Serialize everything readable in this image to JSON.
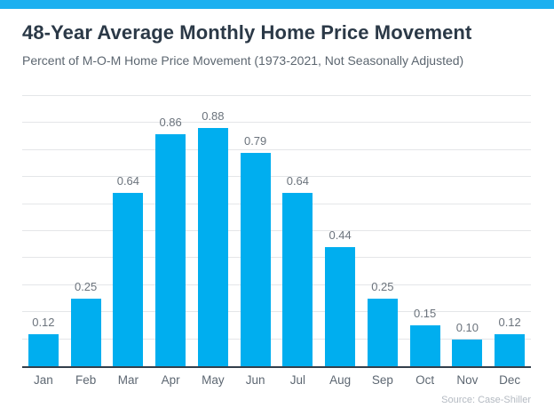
{
  "header": {
    "title": "48-Year Average Monthly Home Price Movement",
    "subtitle": "Percent of M-O-M Home Price Movement (1973-2021, Not Seasonally Adjusted)"
  },
  "footer": {
    "source": "Source: Case-Shiller"
  },
  "colors": {
    "top_bar": "#1CB0F0",
    "bar": "#00AEEF",
    "title_text": "#2b3947",
    "subtitle_text": "#5c6670",
    "gridline": "#e4e6e8",
    "axis": "#343f4b",
    "value_label": "#6b737c",
    "month_label": "#5d6772",
    "source_text": "#b4bac2"
  },
  "chart_data": {
    "type": "bar",
    "title": "48-Year Average Monthly Home Price Movement",
    "subtitle": "Percent of M-O-M Home Price Movement (1973-2021, Not Seasonally Adjusted)",
    "categories": [
      "Jan",
      "Feb",
      "Mar",
      "Apr",
      "May",
      "Jun",
      "Jul",
      "Aug",
      "Sep",
      "Oct",
      "Nov",
      "Dec"
    ],
    "values": [
      0.12,
      0.25,
      0.64,
      0.86,
      0.88,
      0.79,
      0.64,
      0.44,
      0.25,
      0.15,
      0.1,
      0.12
    ],
    "value_labels": [
      "0.12",
      "0.25",
      "0.64",
      "0.86",
      "0.88",
      "0.79",
      "0.64",
      "0.44",
      "0.25",
      "0.15",
      "0.10",
      "0.12"
    ],
    "xlabel": "",
    "ylabel": "",
    "ylim": [
      0,
      1.0
    ],
    "gridline_step": 0.1,
    "grid": true,
    "legend": "none",
    "y_axis_labels_visible": false,
    "source": "Source: Case-Shiller"
  }
}
